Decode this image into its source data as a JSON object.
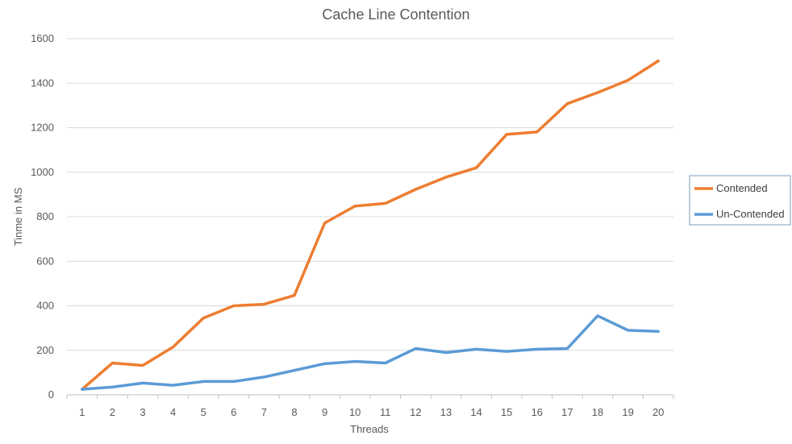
{
  "chart_data": {
    "type": "line",
    "title": "Cache Line Contention",
    "xlabel": "Threads",
    "ylabel": "Tinme in MS",
    "categories": [
      "1",
      "2",
      "3",
      "4",
      "5",
      "6",
      "7",
      "8",
      "9",
      "10",
      "11",
      "12",
      "13",
      "14",
      "15",
      "16",
      "17",
      "18",
      "19",
      "20"
    ],
    "ylim": [
      0,
      1600
    ],
    "yticks": [
      0,
      200,
      400,
      600,
      800,
      1000,
      1200,
      1400,
      1600
    ],
    "grid": true,
    "legend_position": "right",
    "series": [
      {
        "name": "Contended",
        "color": "#ED7D31",
        "values": [
          25,
          143,
          132,
          215,
          345,
          400,
          407,
          447,
          772,
          848,
          860,
          923,
          978,
          1020,
          1170,
          1181,
          1308,
          1358,
          1413,
          1500
        ]
      },
      {
        "name": "Un-Contended",
        "color": "#5B9BD5",
        "values": [
          25,
          35,
          53,
          43,
          60,
          60,
          80,
          110,
          140,
          150,
          143,
          208,
          190,
          205,
          195,
          205,
          208,
          355,
          290,
          285
        ]
      }
    ]
  }
}
